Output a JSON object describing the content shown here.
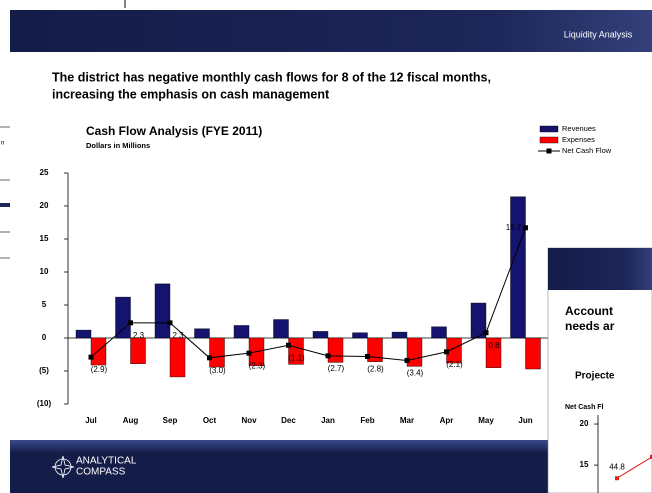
{
  "header": {
    "title": "Liquidity Analysis"
  },
  "headline": [
    "The district has negative monthly cash flows for 8 of the 12 fiscal months,",
    "increasing the emphasis on cash management"
  ],
  "background": {
    "fragment": "n"
  },
  "chart_data": [
    {
      "type": "bar",
      "title": "Cash Flow Analysis (FYE 2011)",
      "subtitle": "Dollars in Millions",
      "categories": [
        "Jul",
        "Aug",
        "Sep",
        "Oct",
        "Nov",
        "Dec",
        "Jan",
        "Feb",
        "Mar",
        "Apr",
        "May",
        "Jun"
      ],
      "series": [
        {
          "name": "Revenues",
          "type": "bar",
          "color": "#14146e",
          "values": [
            1.2,
            6.2,
            8.2,
            1.4,
            1.9,
            2.8,
            1.0,
            0.8,
            0.9,
            1.7,
            5.3,
            21.4
          ]
        },
        {
          "name": "Expenses",
          "type": "bar",
          "color": "#ff0000",
          "values": [
            -4.1,
            -3.9,
            -5.9,
            -4.4,
            -4.2,
            -4.0,
            -3.7,
            -3.6,
            -4.3,
            -3.8,
            -4.5,
            -4.7
          ]
        },
        {
          "name": "Net Cash Flow",
          "type": "line",
          "color": "#000000",
          "values": [
            -2.9,
            2.3,
            2.3,
            -3.0,
            -2.3,
            -1.1,
            -2.7,
            -2.8,
            -3.4,
            -2.1,
            0.8,
            16.7
          ],
          "value_labels": [
            "(2.9)",
            "2.3",
            "2.3",
            "(3.0)",
            "(2.3)",
            "(1.1)",
            "(2.7)",
            "(2.8)",
            "(3.4)",
            "(2.1)",
            "0.8",
            "16.7"
          ]
        }
      ],
      "ylim": [
        -10,
        25
      ],
      "yticks": [
        {
          "value": -10,
          "label": "(10)"
        },
        {
          "value": -5,
          "label": "(5)"
        },
        0,
        5,
        10,
        15,
        20,
        25
      ],
      "legend": "top-right"
    },
    {
      "type": "line",
      "title": "Projecte",
      "subtitle": "Net Cash Fl",
      "categories": [
        null,
        null
      ],
      "series": [
        {
          "name": null,
          "color": "#e02020",
          "values": [
            13.4,
            16.0
          ]
        }
      ],
      "annotations": [
        "44.8"
      ],
      "ylim": [
        11.6,
        21.1
      ],
      "yticks": [
        15,
        20
      ]
    }
  ],
  "overlay": {
    "heading_lines": [
      "Account",
      "needs ar"
    ]
  },
  "footer": {
    "logo_lines": [
      "ANALYTICAL",
      "COMPASS"
    ]
  }
}
